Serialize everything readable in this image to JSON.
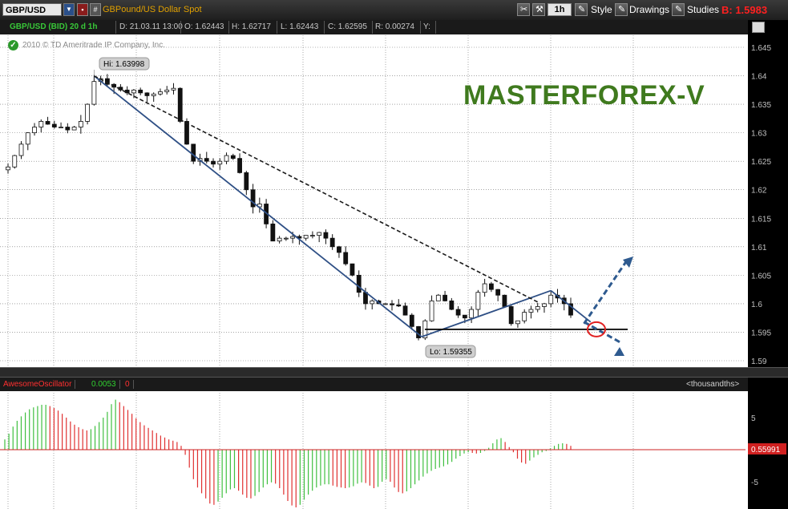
{
  "toolbar": {
    "symbol": "GBP/USD",
    "description": "GBPound/US Dollar Spot",
    "hash_label": "#",
    "timeframe": "1h",
    "style_label": "Style",
    "drawings_label": "Drawings",
    "studies_label": "Studies",
    "bid_label": "B: 1.5983"
  },
  "infobar": {
    "title": "GBP/USD (BID) 20 d 1h",
    "date": "D: 21.03.11 13:00",
    "open": "O: 1.62443",
    "high": "H: 1.62717",
    "low": "L: 1.62443",
    "close": "C: 1.62595",
    "range": "R: 0.00274",
    "y": "Y:"
  },
  "copyright": "2010 © TD Ameritrade IP Company, Inc.",
  "brand_text": "MASTERFOREX-V",
  "oscillator": {
    "name": "AwesomeOscillator",
    "value": "0.0053",
    "value2": "0",
    "units": "<thousandths>"
  },
  "colors": {
    "trend_line": "#2e4f85",
    "dashed_line": "#1a1a1a",
    "arrow_dashed": "#2e5a8f",
    "circle": "#e02020",
    "osc_up": "#3fbf3f",
    "osc_down": "#e03030",
    "grid": "#6f6f6f",
    "brand": "#3f7a1e"
  },
  "chart_data": [
    {
      "type": "candlestick",
      "title": "GBP/USD (BID) 20 d 1h",
      "xlabel": "",
      "ylabel": "",
      "ylim": [
        1.59,
        1.645
      ],
      "y_ticks": [
        "1.645",
        "1.64",
        "1.635",
        "1.63",
        "1.625",
        "1.62",
        "1.615",
        "1.61",
        "1.605",
        "1.6",
        "1.595",
        "1.59"
      ],
      "grid": true,
      "annotations": [
        {
          "label": "Hi: 1.63998",
          "value": 1.63998
        },
        {
          "label": "Lo: 1.59355",
          "value": 1.59355
        }
      ],
      "close_path": [
        1.624,
        1.626,
        1.628,
        1.63,
        1.631,
        1.632,
        1.6315,
        1.631,
        1.631,
        1.6305,
        1.631,
        1.632,
        1.635,
        1.639,
        1.6395,
        1.6385,
        1.638,
        1.6375,
        1.637,
        1.6375,
        1.637,
        1.6365,
        1.6368,
        1.6372,
        1.6375,
        1.6378,
        1.632,
        1.628,
        1.625,
        1.6255,
        1.625,
        1.6245,
        1.625,
        1.626,
        1.6255,
        1.623,
        1.62,
        1.617,
        1.6175,
        1.614,
        1.611,
        1.6115,
        1.6115,
        1.6118,
        1.6115,
        1.612,
        1.612,
        1.6125,
        1.6115,
        1.61,
        1.609,
        1.607,
        1.605,
        1.602,
        1.6,
        1.6005,
        1.6,
        1.6,
        1.5998,
        1.5996,
        1.598,
        1.596,
        1.594,
        1.597,
        1.6005,
        1.6015,
        1.6005,
        1.599,
        1.598,
        1.5975,
        1.599,
        1.602,
        1.6035,
        1.6025,
        1.6015,
        1.5995,
        1.5965,
        1.597,
        1.5985,
        1.599,
        1.5995,
        1.6,
        1.6015,
        1.601,
        1.6,
        1.598
      ],
      "levels": [
        {
          "name": "horizontal",
          "value": 1.5955
        }
      ]
    },
    {
      "type": "bar",
      "title": "AwesomeOscillator",
      "ylabel": "<thousandths>",
      "y_ticks": [
        "5",
        "-5"
      ],
      "last_value": "0.55991",
      "values": [
        1.6,
        2.5,
        3.6,
        4.5,
        5.2,
        5.8,
        6.3,
        6.6,
        6.8,
        7.0,
        7.0,
        6.8,
        6.5,
        6.1,
        5.6,
        5.0,
        4.4,
        3.9,
        3.5,
        3.2,
        3.0,
        3.2,
        3.7,
        4.3,
        5.0,
        5.9,
        7.1,
        7.8,
        7.4,
        6.8,
        6.2,
        5.6,
        4.9,
        4.3,
        3.8,
        3.4,
        3.0,
        2.6,
        2.2,
        1.9,
        1.6,
        1.4,
        1.2,
        0.6,
        -0.8,
        -2.8,
        -4.6,
        -5.9,
        -6.8,
        -7.6,
        -8.4,
        -8.6,
        -8.1,
        -7.5,
        -6.8,
        -6.2,
        -6.0,
        -6.4,
        -7.0,
        -7.5,
        -7.6,
        -7.2,
        -6.6,
        -5.9,
        -5.4,
        -5.1,
        -5.3,
        -6.0,
        -7.0,
        -8.0,
        -8.7,
        -9.0,
        -8.6,
        -7.8,
        -7.0,
        -6.4,
        -5.9,
        -5.6,
        -5.4,
        -5.4,
        -5.6,
        -5.8,
        -5.9,
        -6.0,
        -5.9,
        -5.7,
        -5.3,
        -5.1,
        -5.2,
        -5.6,
        -6.0,
        -5.8,
        -5.0,
        -4.6,
        -5.0,
        -5.9,
        -6.6,
        -6.8,
        -6.5,
        -6.0,
        -5.4,
        -4.8,
        -4.2,
        -3.7,
        -3.3,
        -3.0,
        -2.8,
        -2.6,
        -2.3,
        -1.9,
        -1.4,
        -1.0,
        -0.6,
        -0.4,
        -0.5,
        -0.6,
        -0.5,
        -0.2,
        0.3,
        1.0,
        1.6,
        1.8,
        1.2,
        0.4,
        -0.4,
        -1.4,
        -2.0,
        -2.2,
        -1.7,
        -1.2,
        -0.8,
        -0.4,
        -0.2,
        0.2,
        0.6,
        0.9,
        1.0,
        0.9,
        0.6
      ]
    }
  ]
}
